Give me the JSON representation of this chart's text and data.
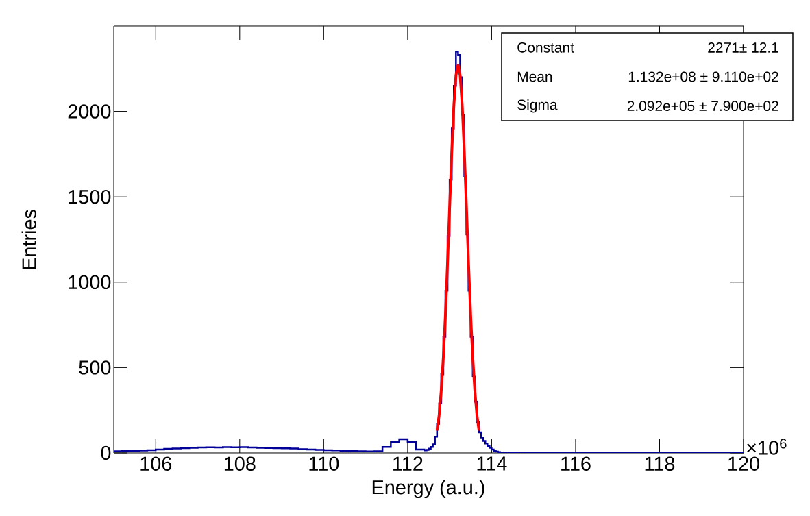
{
  "chart_data": {
    "type": "histogram",
    "xlabel": "Energy (a.u.)",
    "ylabel": "Entries",
    "annotations": [
      "×10$^{6}$",
      "Constant",
      "2271± 12.1",
      "Mean",
      "1.132e+08 ± 9.110e+02",
      "Sigma",
      "2.092e+05 ± 7.900e+02"
    ],
    "xlim": [
      105,
      120
    ],
    "ylim": [
      0,
      2500
    ],
    "xticks": [
      106,
      108,
      110,
      112,
      114,
      116,
      118,
      120
    ],
    "yticks": [
      0,
      500,
      1000,
      1500,
      2000
    ],
    "series": [
      {
        "type": "histogram",
        "color": "#000099",
        "bins": [
          105.0,
          105.2,
          105.4,
          105.6,
          105.8,
          106.0,
          106.2,
          106.4,
          106.6,
          106.8,
          107.0,
          107.2,
          107.4,
          107.6,
          107.8,
          108.0,
          108.2,
          108.4,
          108.6,
          108.8,
          109.0,
          109.2,
          109.4,
          109.6,
          109.8,
          110.0,
          110.2,
          110.4,
          110.6,
          110.8,
          111.0,
          111.2,
          111.4,
          111.6,
          111.8,
          112.0,
          112.2,
          112.4,
          112.45,
          112.5,
          112.55,
          112.6,
          112.65,
          112.7,
          112.75,
          112.8,
          112.85,
          112.9,
          112.95,
          113.0,
          113.05,
          113.1,
          113.15,
          113.2,
          113.25,
          113.3,
          113.35,
          113.4,
          113.45,
          113.5,
          113.55,
          113.6,
          113.65,
          113.7,
          113.75,
          113.8,
          113.85,
          113.9,
          113.95,
          114.0,
          114.05,
          114.1,
          114.15,
          114.2,
          114.4,
          114.6,
          114.8,
          115.0,
          115.5,
          116.0,
          116.5,
          117.0,
          117.5,
          118.0,
          118.5,
          119.0,
          119.5,
          120.0
        ],
        "values": [
          10,
          12,
          12,
          14,
          16,
          20,
          24,
          26,
          28,
          30,
          32,
          33,
          32,
          34,
          33,
          34,
          32,
          30,
          29,
          28,
          27,
          26,
          22,
          20,
          18,
          16,
          15,
          13,
          12,
          10,
          9,
          10,
          35,
          65,
          80,
          65,
          20,
          15,
          18,
          25,
          35,
          50,
          95,
          170,
          290,
          460,
          680,
          950,
          1270,
          1600,
          1900,
          2150,
          2350,
          2330,
          2200,
          1980,
          1620,
          1280,
          950,
          680,
          450,
          300,
          180,
          120,
          90,
          70,
          55,
          40,
          30,
          20,
          12,
          8,
          5,
          3,
          2,
          1,
          0,
          0,
          0,
          0,
          0,
          0,
          0,
          0,
          0,
          0,
          0
        ]
      },
      {
        "type": "line",
        "color": "#ff0000",
        "x": [
          112.7,
          112.75,
          112.8,
          112.85,
          112.9,
          112.95,
          113.0,
          113.05,
          113.1,
          113.15,
          113.2,
          113.25,
          113.3,
          113.35,
          113.4,
          113.45,
          113.5,
          113.55,
          113.6,
          113.65,
          113.7
        ],
        "values": [
          130,
          222,
          365,
          560,
          810,
          1113,
          1441,
          1761,
          2033,
          2211,
          2271,
          2211,
          2033,
          1761,
          1441,
          1113,
          810,
          560,
          365,
          222,
          130
        ]
      }
    ]
  }
}
